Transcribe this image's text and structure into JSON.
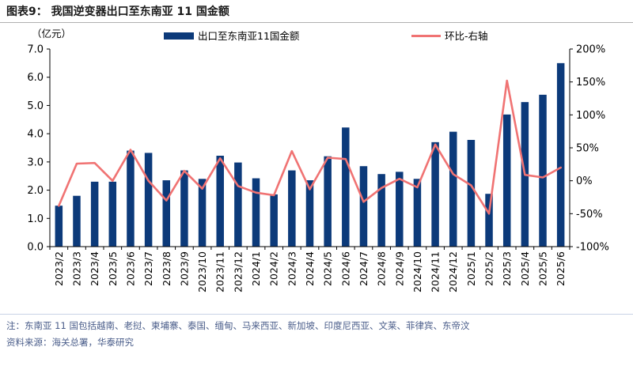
{
  "figure": {
    "title": "图表9：  我国逆变器出口至东南亚 11 国金额",
    "note": "注：东南亚 11 国包括越南、老挝、柬埔寨、泰国、缅甸、马来西亚、新加坡、印度尼西亚、文莱、菲律宾、东帝汶",
    "source": "资料来源：海关总署，华泰研究"
  },
  "colors": {
    "bar": "#0c3a7a",
    "line": "#f07373",
    "axis": "#000000",
    "note_text": "#4a5d8a"
  },
  "chart_data": {
    "type": "bar",
    "title": "",
    "xlabel": "",
    "ylabel": "（亿元）",
    "ylim": [
      0,
      7
    ],
    "y_ticks": [
      "0.0",
      "1.0",
      "2.0",
      "3.0",
      "4.0",
      "5.0",
      "6.0",
      "7.0"
    ],
    "y2lim": [
      -100,
      200
    ],
    "y2_ticks": [
      "-100%",
      "-50%",
      "0%",
      "50%",
      "100%",
      "150%",
      "200%"
    ],
    "grid": false,
    "legend_position": "top",
    "categories": [
      "2023/2",
      "2023/3",
      "2023/4",
      "2023/5",
      "2023/6",
      "2023/7",
      "2023/8",
      "2023/9",
      "2023/10",
      "2023/11",
      "2023/12",
      "2024/1",
      "2024/2",
      "2024/3",
      "2024/4",
      "2024/5",
      "2024/6",
      "2024/7",
      "2024/8",
      "2024/9",
      "2024/10",
      "2024/11",
      "2024/12",
      "2025/1",
      "2025/2",
      "2025/3",
      "2025/4",
      "2025/5",
      "2025/6"
    ],
    "series": [
      {
        "name": "出口至东南亚11国金额",
        "type": "bar",
        "axis": "left",
        "values": [
          1.45,
          1.8,
          2.3,
          2.3,
          3.4,
          3.32,
          2.35,
          2.7,
          2.4,
          3.22,
          2.98,
          2.42,
          1.85,
          2.7,
          2.35,
          3.2,
          4.22,
          2.85,
          2.57,
          2.65,
          2.4,
          3.7,
          4.07,
          3.78,
          1.87,
          4.68,
          5.12,
          5.38,
          6.5
        ]
      },
      {
        "name": "环比-右轴",
        "type": "line",
        "axis": "right",
        "values": [
          -38,
          26,
          27,
          0,
          47,
          0,
          -30,
          15,
          -12,
          34,
          -8,
          -18,
          -22,
          45,
          -13,
          35,
          33,
          -32,
          -11,
          3,
          -10,
          55,
          10,
          -7,
          -50,
          152,
          9,
          5,
          20
        ]
      }
    ]
  }
}
